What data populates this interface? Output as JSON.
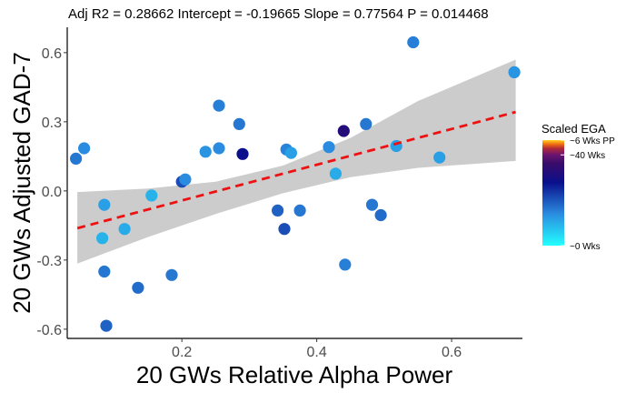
{
  "chart_data": {
    "type": "scatter",
    "title": "Adj R2 =  0.28662 Intercept = -0.19665  Slope = 0.77564  P = 0.014468",
    "xlabel": "20 GWs Relative Alpha Power",
    "ylabel": "20 GWs Adjusted GAD-7",
    "xlim": [
      0.03,
      0.705
    ],
    "ylim": [
      -0.64,
      0.71
    ],
    "x_ticks": [
      0.2,
      0.4,
      0.6
    ],
    "x_tick_labels": [
      "0.2",
      "0.4",
      "0.6"
    ],
    "y_ticks": [
      -0.6,
      -0.3,
      0.0,
      0.3,
      0.6
    ],
    "y_tick_labels": [
      "-0.6",
      "-0.3",
      "0.0",
      "0.3",
      "0.6"
    ],
    "grid": false,
    "regression": {
      "intercept": -0.19665,
      "slope": 0.77564,
      "x_range": [
        0.045,
        0.695
      ],
      "color": "#ee1111",
      "style": "dashed",
      "confidence_band": [
        {
          "x": 0.045,
          "lower": -0.315,
          "upper": -0.005
        },
        {
          "x": 0.15,
          "lower": -0.2,
          "upper": 0.01
        },
        {
          "x": 0.25,
          "lower": -0.1,
          "upper": 0.04
        },
        {
          "x": 0.35,
          "lower": -0.01,
          "upper": 0.11
        },
        {
          "x": 0.45,
          "lower": 0.06,
          "upper": 0.23
        },
        {
          "x": 0.55,
          "lower": 0.1,
          "upper": 0.39
        },
        {
          "x": 0.695,
          "lower": 0.13,
          "upper": 0.57
        }
      ],
      "band_color": "#cccccc"
    },
    "points": [
      {
        "x": 0.043,
        "y": 0.14,
        "ega": 0.35
      },
      {
        "x": 0.055,
        "y": 0.185,
        "ega": 0.3
      },
      {
        "x": 0.082,
        "y": -0.205,
        "ega": 0.2
      },
      {
        "x": 0.085,
        "y": -0.06,
        "ega": 0.25
      },
      {
        "x": 0.085,
        "y": -0.35,
        "ega": 0.35
      },
      {
        "x": 0.088,
        "y": -0.585,
        "ega": 0.4
      },
      {
        "x": 0.115,
        "y": -0.165,
        "ega": 0.22
      },
      {
        "x": 0.135,
        "y": -0.42,
        "ega": 0.38
      },
      {
        "x": 0.155,
        "y": -0.02,
        "ega": 0.2
      },
      {
        "x": 0.185,
        "y": -0.365,
        "ega": 0.35
      },
      {
        "x": 0.2,
        "y": 0.04,
        "ega": 0.45
      },
      {
        "x": 0.205,
        "y": 0.05,
        "ega": 0.3
      },
      {
        "x": 0.235,
        "y": 0.17,
        "ega": 0.28
      },
      {
        "x": 0.255,
        "y": 0.37,
        "ega": 0.33
      },
      {
        "x": 0.255,
        "y": 0.185,
        "ega": 0.3
      },
      {
        "x": 0.285,
        "y": 0.29,
        "ega": 0.35
      },
      {
        "x": 0.29,
        "y": 0.16,
        "ega": 0.6
      },
      {
        "x": 0.342,
        "y": -0.085,
        "ega": 0.4
      },
      {
        "x": 0.352,
        "y": -0.165,
        "ega": 0.45
      },
      {
        "x": 0.355,
        "y": 0.18,
        "ega": 0.32
      },
      {
        "x": 0.362,
        "y": 0.165,
        "ega": 0.25
      },
      {
        "x": 0.375,
        "y": -0.085,
        "ega": 0.35
      },
      {
        "x": 0.418,
        "y": 0.19,
        "ega": 0.3
      },
      {
        "x": 0.428,
        "y": 0.075,
        "ega": 0.22
      },
      {
        "x": 0.44,
        "y": 0.26,
        "ega": 0.7
      },
      {
        "x": 0.442,
        "y": -0.32,
        "ega": 0.33
      },
      {
        "x": 0.473,
        "y": 0.29,
        "ega": 0.35
      },
      {
        "x": 0.482,
        "y": -0.06,
        "ega": 0.35
      },
      {
        "x": 0.495,
        "y": -0.105,
        "ega": 0.38
      },
      {
        "x": 0.518,
        "y": 0.195,
        "ega": 0.25
      },
      {
        "x": 0.543,
        "y": 0.645,
        "ega": 0.33
      },
      {
        "x": 0.582,
        "y": 0.145,
        "ega": 0.25
      },
      {
        "x": 0.693,
        "y": 0.515,
        "ega": 0.28
      }
    ],
    "legend": {
      "title": "Scaled EGA",
      "placement": "right",
      "labels": [
        "~6 Wks PP",
        "~40 Wks",
        "~0 Wks"
      ],
      "label_positions": [
        1.0,
        0.86,
        0.0
      ],
      "colorbar_stops": [
        {
          "offset": 0.0,
          "color": "#22ffff"
        },
        {
          "offset": 0.3,
          "color": "#2a8ce0"
        },
        {
          "offset": 0.6,
          "color": "#0a0f8c"
        },
        {
          "offset": 0.78,
          "color": "#3a0c6a"
        },
        {
          "offset": 0.86,
          "color": "#6a1470"
        },
        {
          "offset": 0.92,
          "color": "#b0283a"
        },
        {
          "offset": 0.96,
          "color": "#ee6a10"
        },
        {
          "offset": 1.0,
          "color": "#ffd020"
        }
      ]
    }
  }
}
